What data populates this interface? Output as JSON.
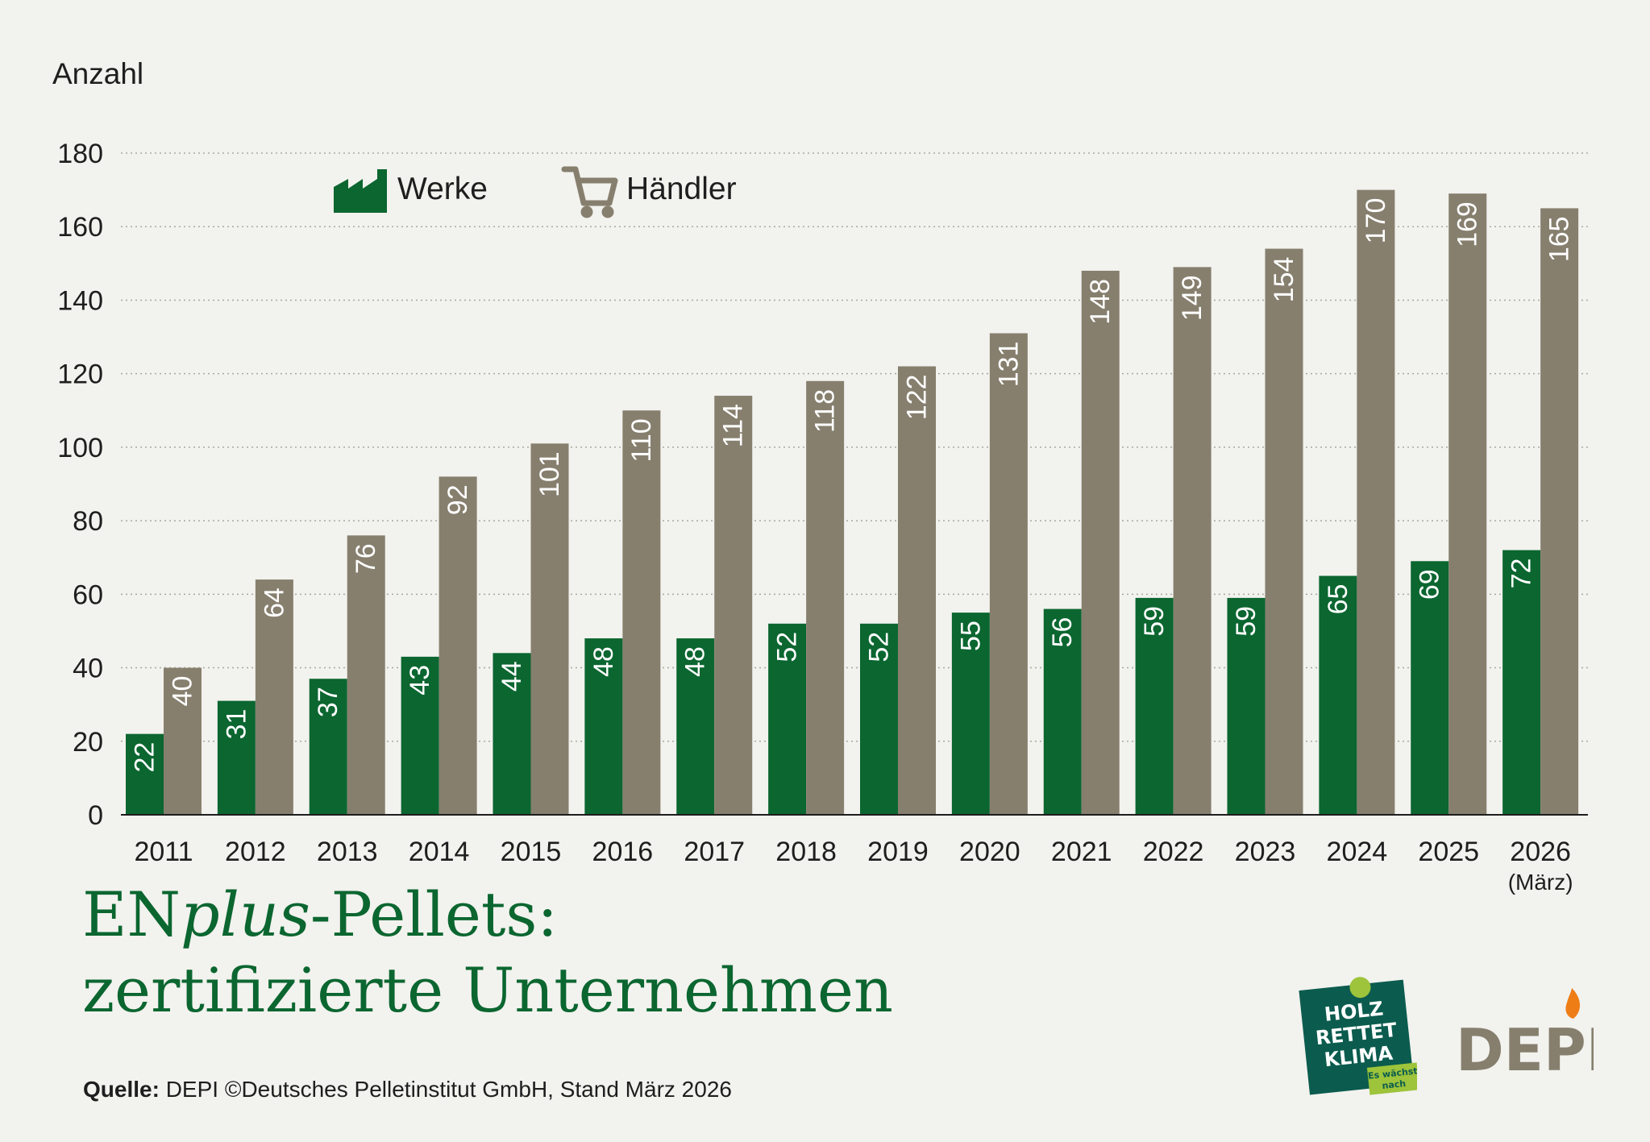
{
  "chart_data": {
    "type": "bar",
    "ylabel": "Anzahl",
    "ylim": [
      0,
      180
    ],
    "yticks": [
      0,
      20,
      40,
      60,
      80,
      100,
      120,
      140,
      160,
      180
    ],
    "grid": "dotted-horizontal",
    "legend_position": "top-left",
    "categories": [
      "2011",
      "2012",
      "2013",
      "2014",
      "2015",
      "2016",
      "2017",
      "2018",
      "2019",
      "2020",
      "2021",
      "2022",
      "2023",
      "2024",
      "2025",
      "2026"
    ],
    "category_notes": [
      "",
      "",
      "",
      "",
      "",
      "",
      "",
      "",
      "",
      "",
      "",
      "",
      "",
      "",
      "",
      "(März)"
    ],
    "series": [
      {
        "name": "Werke",
        "color": "#0b6630",
        "icon": "factory-icon",
        "values": [
          22,
          31,
          37,
          43,
          44,
          48,
          48,
          52,
          52,
          55,
          56,
          59,
          59,
          65,
          69,
          72
        ]
      },
      {
        "name": "Händler",
        "color": "#877f6e",
        "icon": "shopping-cart-icon",
        "values": [
          40,
          64,
          76,
          92,
          101,
          110,
          114,
          118,
          122,
          131,
          148,
          149,
          154,
          170,
          169,
          165
        ]
      }
    ]
  },
  "title": {
    "line1_prefix": "EN",
    "line1_italic": "plus",
    "line1_suffix": "-Pellets:",
    "line2": "zertifizierte Unternehmen"
  },
  "source": {
    "label": "Quelle:",
    "text": " DEPI  ©Deutsches Pelletinstitut GmbH, Stand März 2026"
  },
  "logos": {
    "holz": {
      "line1": "HOLZ",
      "line2": "RETTET",
      "line3": "KLIMA",
      "tag1": "Es wächst",
      "tag2": "nach"
    },
    "depi": {
      "text": "DEPI"
    }
  }
}
